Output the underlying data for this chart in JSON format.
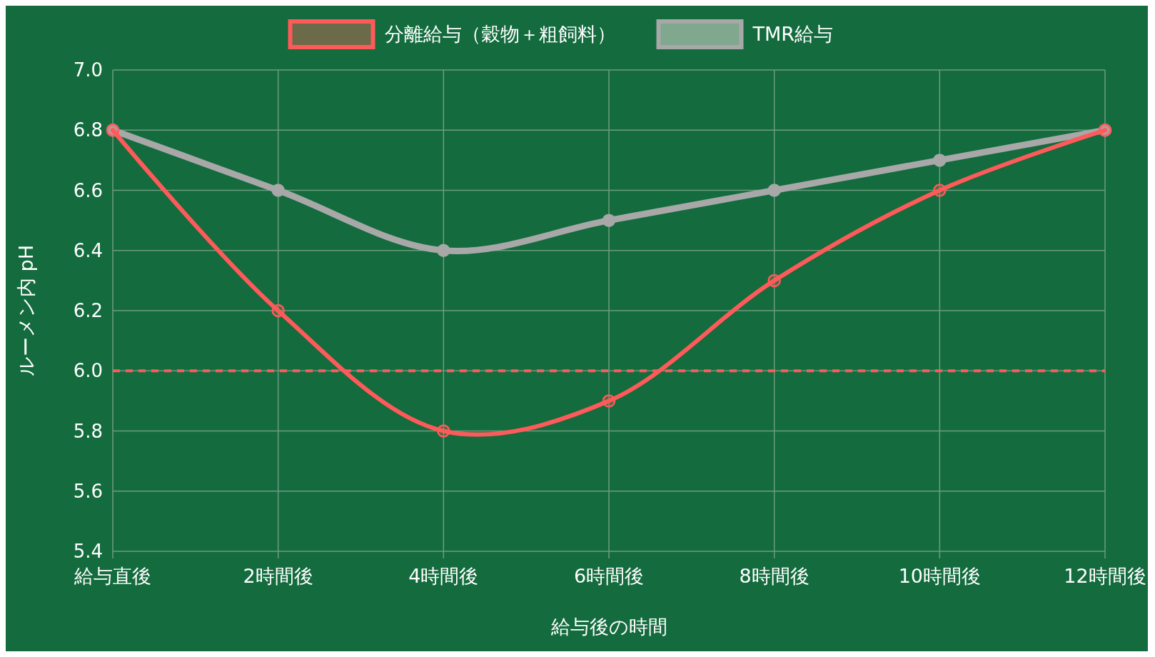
{
  "chart_data": {
    "type": "line",
    "xlabel": "給与後の時間",
    "ylabel": "ルーメン内 pH",
    "categories": [
      "給与直後",
      "2時間後",
      "4時間後",
      "6時間後",
      "8時間後",
      "10時間後",
      "12時間後"
    ],
    "series": [
      {
        "name": "分離給与（穀物＋粗飼料）",
        "color": "#ff5a5a",
        "values": [
          6.8,
          6.2,
          5.8,
          5.9,
          6.3,
          6.6,
          6.8
        ]
      },
      {
        "name": "TMR給与",
        "color": "#a8a8a8",
        "values": [
          6.8,
          6.6,
          6.4,
          6.5,
          6.6,
          6.7,
          6.8
        ]
      }
    ],
    "ylim": [
      5.4,
      7.0
    ],
    "yticks": [
      {
        "value": 5.4,
        "label": "5.4"
      },
      {
        "value": 5.6,
        "label": "5.6"
      },
      {
        "value": 5.8,
        "label": "5.8"
      },
      {
        "value": 6.0,
        "label": "6.0"
      },
      {
        "value": 6.2,
        "label": "6.2"
      },
      {
        "value": 6.4,
        "label": "6.4"
      },
      {
        "value": 6.6,
        "label": "6.6"
      },
      {
        "value": 6.8,
        "label": "6.8"
      },
      {
        "value": 7.0,
        "label": "7.0"
      }
    ],
    "ref_lines": [
      {
        "axis": "y",
        "value": 6.0,
        "color": "#ff5a5a",
        "line_style": "dashed"
      }
    ],
    "grid": true,
    "legend": "top",
    "marker": "circle",
    "line_style": "solid"
  }
}
